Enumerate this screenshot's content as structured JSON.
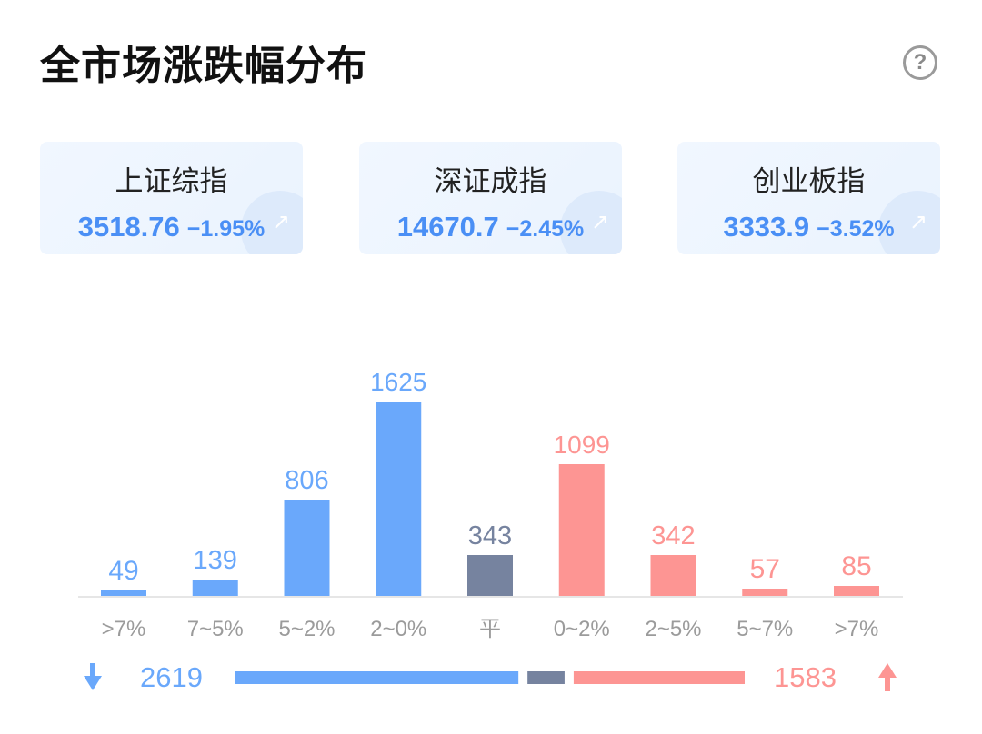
{
  "title": "全市场涨跌幅分布",
  "help_icon": "question-circle-icon",
  "indices": [
    {
      "name": "上证综指",
      "value": "3518.76",
      "change": "−1.95%"
    },
    {
      "name": "深证成指",
      "value": "14670.7",
      "change": "−2.45%"
    },
    {
      "name": "创业板指",
      "value": "3333.9",
      "change": "−3.52%"
    }
  ],
  "colors": {
    "down": "#6aa8fb",
    "flat": "#76839f",
    "up": "#fd9593",
    "index_text": "#4a8ff5"
  },
  "chart_data": {
    "type": "bar",
    "categories": [
      ">7%",
      "7~5%",
      "5~2%",
      "2~0%",
      "平",
      "0~2%",
      "2~5%",
      "5~7%",
      ">7%"
    ],
    "values": [
      49,
      139,
      806,
      1625,
      343,
      1099,
      342,
      57,
      85
    ],
    "groups": [
      "down",
      "down",
      "down",
      "down",
      "flat",
      "up",
      "up",
      "up",
      "up"
    ],
    "ylim": [
      0,
      1625
    ]
  },
  "summary": {
    "down_total": 2619,
    "flat_total": 343,
    "up_total": 1583,
    "down_icon": "arrow-down-icon",
    "up_icon": "arrow-up-icon"
  }
}
